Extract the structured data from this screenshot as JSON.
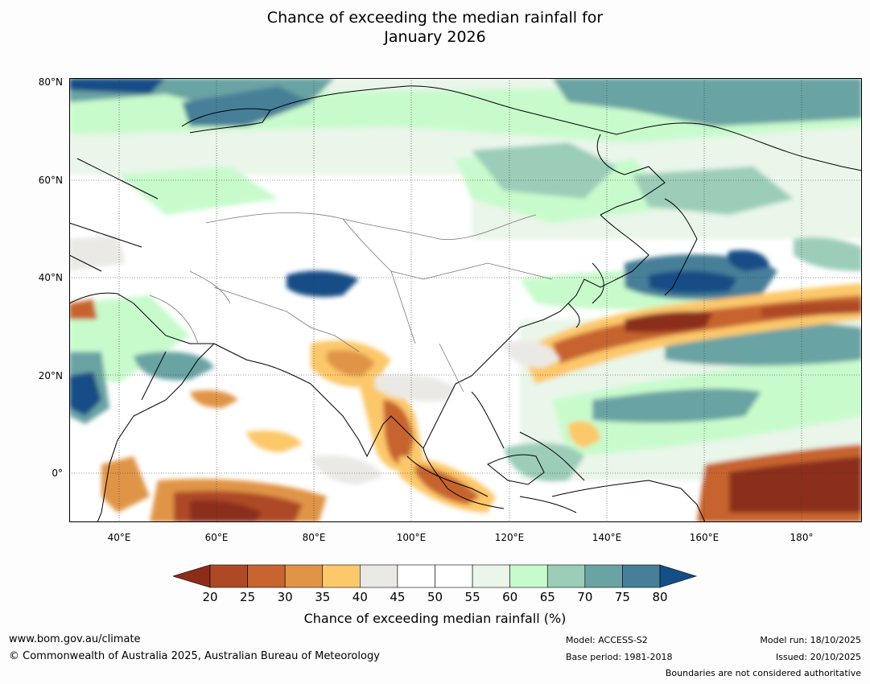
{
  "title_line1": "Chance of exceeding the median rainfall for",
  "title_line2": "January 2026",
  "lat_labels": [
    "80°N",
    "60°N",
    "40°N",
    "20°N",
    "0°"
  ],
  "lon_labels": [
    "40°E",
    "60°E",
    "80°E",
    "100°E",
    "120°E",
    "140°E",
    "160°E",
    "180°"
  ],
  "colorbar": {
    "labels": [
      "20",
      "25",
      "30",
      "35",
      "40",
      "45",
      "50",
      "55",
      "60",
      "65",
      "70",
      "75",
      "80"
    ],
    "colors": [
      "#8c2d1a",
      "#ad4a25",
      "#c7642f",
      "#e09446",
      "#fcc86a",
      "#ebe9e5",
      "#ffffff",
      "#ffffff",
      "#e9f6e9",
      "#c8fbcc",
      "#9bcdb9",
      "#6aa3a3",
      "#477f98",
      "#144e86"
    ],
    "title": "Chance of exceeding median rainfall (%)"
  },
  "footer": {
    "website": "www.bom.gov.au/climate",
    "copyright": "© Commonwealth of Australia 2025, Australian Bureau of Meteorology",
    "model": "Model: ACCESS-S2",
    "base_period": "Base period: 1981-2018",
    "model_run": "Model run: 18/10/2025",
    "issued": "Issued: 20/10/2025",
    "disclaimer": "Boundaries are not considered authoritative"
  }
}
